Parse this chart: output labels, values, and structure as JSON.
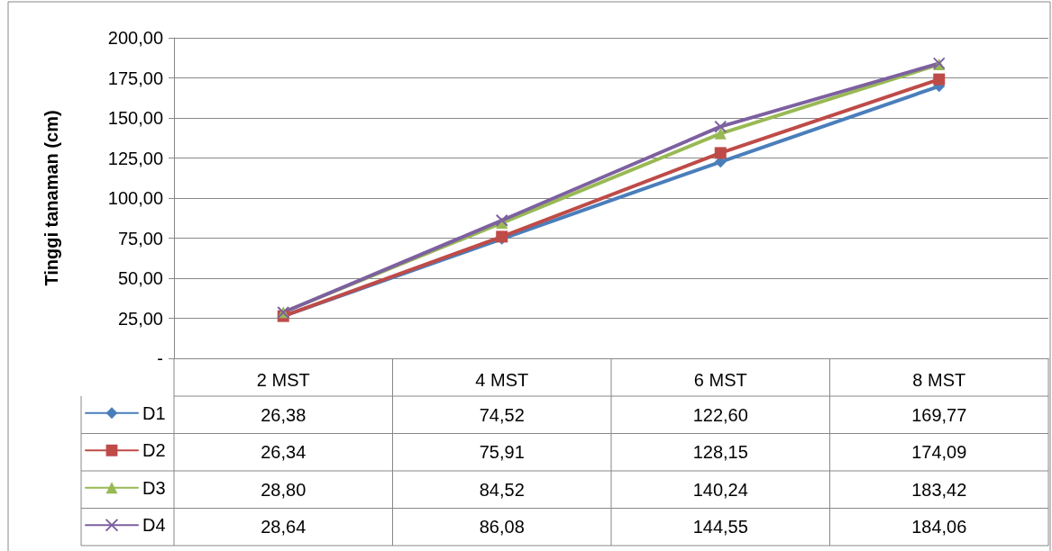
{
  "chart_data": {
    "type": "line",
    "ylabel": "Tinggi tanaman (cm)",
    "categories": [
      "2 MST",
      "4 MST",
      "6 MST",
      "8 MST"
    ],
    "series": [
      {
        "name": "D1",
        "color": "#4a7ebb",
        "marker": "diamond",
        "values": [
          26.38,
          74.52,
          122.6,
          169.77
        ],
        "value_labels": [
          "26,38",
          "74,52",
          "122,60",
          "169,77"
        ]
      },
      {
        "name": "D2",
        "color": "#be4b48",
        "marker": "square",
        "values": [
          26.34,
          75.91,
          128.15,
          174.09
        ],
        "value_labels": [
          "26,34",
          "75,91",
          "128,15",
          "174,09"
        ]
      },
      {
        "name": "D3",
        "color": "#98b954",
        "marker": "triangle",
        "values": [
          28.8,
          84.52,
          140.24,
          183.42
        ],
        "value_labels": [
          "28,80",
          "84,52",
          "140,24",
          "183,42"
        ]
      },
      {
        "name": "D4",
        "color": "#7d60a0",
        "marker": "cross",
        "values": [
          28.64,
          86.08,
          144.55,
          184.06
        ],
        "value_labels": [
          "28,64",
          "86,08",
          "144,55",
          "184,06"
        ]
      }
    ],
    "ylim": [
      0,
      200
    ],
    "yticks": [
      {
        "value": 0,
        "label": "-"
      },
      {
        "value": 25,
        "label": "25,00"
      },
      {
        "value": 50,
        "label": "50,00"
      },
      {
        "value": 75,
        "label": "75,00"
      },
      {
        "value": 100,
        "label": "100,00"
      },
      {
        "value": 125,
        "label": "125,00"
      },
      {
        "value": 150,
        "label": "150,00"
      },
      {
        "value": 175,
        "label": "175,00"
      },
      {
        "value": 200,
        "label": "200,00"
      }
    ],
    "grid": "y",
    "legend": "bottom left",
    "line_style": "solid"
  }
}
